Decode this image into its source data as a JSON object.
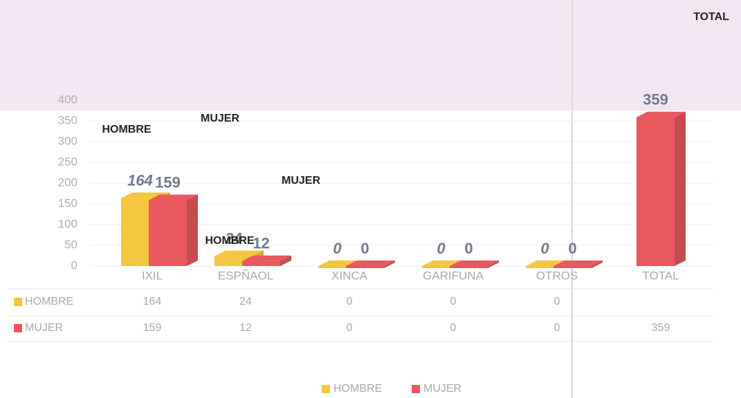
{
  "chart_data": {
    "type": "bar3d",
    "categories": [
      "IXIL",
      "ESPÑAOL",
      "XINCA",
      "GARIFUNA",
      "OTROS",
      "TOTAL"
    ],
    "series": [
      {
        "name": "HOMBRE",
        "color": "#f3c63f",
        "values": [
          164,
          24,
          0,
          0,
          0,
          null
        ]
      },
      {
        "name": "MUJER",
        "color": "#e8585e",
        "values": [
          159,
          12,
          0,
          0,
          0,
          359
        ]
      }
    ],
    "annotations": [
      "HOMBRE",
      "MUJER",
      "MUJER",
      "HOMBRE",
      "TOTAL"
    ],
    "ylim": [
      0,
      400
    ],
    "yticks": [
      0,
      50,
      100,
      150,
      200,
      250,
      300,
      350,
      400
    ],
    "grid": true,
    "legend": "bottom"
  }
}
